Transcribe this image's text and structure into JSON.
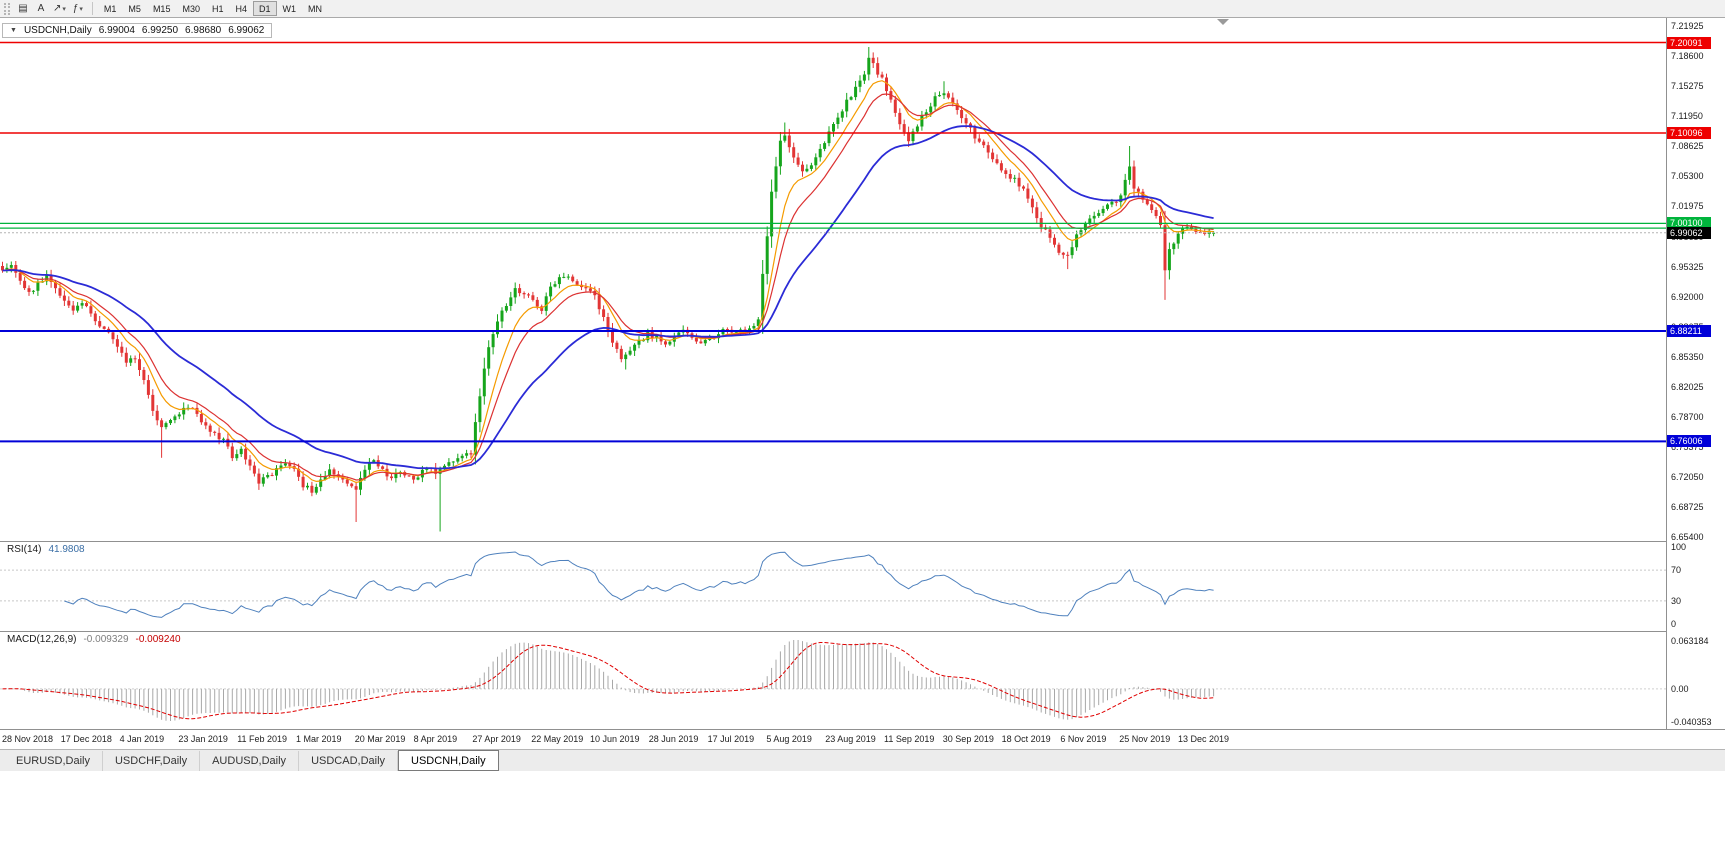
{
  "toolbar": {
    "tools": [
      {
        "name": "charts-button",
        "icon": "chart-window-icon",
        "glyph": "▤",
        "dropdown": false
      },
      {
        "name": "text-tool-button",
        "icon": "text-tool-icon",
        "glyph": "A",
        "dropdown": false
      },
      {
        "name": "draw-tool-button",
        "icon": "trendline-icon",
        "glyph": "↗",
        "dropdown": true
      },
      {
        "name": "indicator-tool-button",
        "icon": "indicator-icon",
        "glyph": "ƒ",
        "dropdown": true
      }
    ],
    "timeframes": [
      {
        "label": "M1",
        "active": false
      },
      {
        "label": "M5",
        "active": false
      },
      {
        "label": "M15",
        "active": false
      },
      {
        "label": "M30",
        "active": false
      },
      {
        "label": "H1",
        "active": false
      },
      {
        "label": "H4",
        "active": false
      },
      {
        "label": "D1",
        "active": true
      },
      {
        "label": "W1",
        "active": false
      },
      {
        "label": "MN",
        "active": false
      }
    ]
  },
  "chart": {
    "legend": {
      "symbol": "USDCNH,Daily",
      "open": "6.99004",
      "high": "6.99250",
      "low": "6.98680",
      "close": "6.99062"
    },
    "y_axis_labels": [
      "7.21925",
      "7.18600",
      "7.15275",
      "7.11950",
      "7.08625",
      "7.05300",
      "7.01975",
      "6.98650",
      "6.95325",
      "6.92000",
      "6.88675",
      "6.85350",
      "6.82025",
      "6.78700",
      "6.75375",
      "6.72050",
      "6.68725",
      "6.65400"
    ],
    "hlines": [
      {
        "value": 7.20091,
        "label": "7.20091",
        "color": "#EE0000",
        "width": 1.5,
        "badge": true
      },
      {
        "value": 7.10096,
        "label": "7.10096",
        "color": "#EE0000",
        "width": 1.5,
        "badge": true
      },
      {
        "value": 7.001,
        "label": "7.00100",
        "color": "#00B43C",
        "width": 1.2,
        "badge": true
      },
      {
        "value": 6.9958,
        "label": "",
        "color": "#00B43C",
        "width": 1.2,
        "badge": false
      },
      {
        "value": 6.88211,
        "label": "6.88211",
        "color": "#0000D8",
        "width": 2,
        "badge": true
      },
      {
        "value": 6.76006,
        "label": "6.76006",
        "color": "#0000D8",
        "width": 2,
        "badge": true
      }
    ],
    "current_price": {
      "value": 6.99062,
      "label": "6.99062",
      "badge_color": "#000000"
    },
    "candle_colors": {
      "up": "#16A51C",
      "down": "#E23535"
    },
    "x_axis_dates": [
      "28 Nov 2018",
      "17 Dec 2018",
      "4 Jan 2019",
      "23 Jan 2019",
      "11 Feb 2019",
      "1 Mar 2019",
      "20 Mar 2019",
      "8 Apr 2019",
      "27 Apr 2019",
      "22 May 2019",
      "10 Jun 2019",
      "28 Jun 2019",
      "17 Jul 2019",
      "5 Aug 2019",
      "23 Aug 2019",
      "11 Sep 2019",
      "30 Sep 2019",
      "18 Oct 2019",
      "6 Nov 2019",
      "25 Nov 2019",
      "13 Dec 2019"
    ]
  },
  "rsi_panel": {
    "label": "RSI(14)",
    "value": "41.9808",
    "axis_labels": [
      "100",
      "70",
      "30",
      "0"
    ],
    "levels": [
      70,
      30
    ],
    "line_color": "#4F81BD"
  },
  "macd_panel": {
    "label": "MACD(12,26,9)",
    "value_main": "-0.009329",
    "value_signal": "-0.009240",
    "axis_top": "0.063184",
    "axis_zero": "0.00",
    "axis_bottom": "-0.040353",
    "histogram_color": "#A8A8A8",
    "signal_color": "#E00000"
  },
  "tabs": [
    {
      "label": "EURUSD,Daily",
      "active": false
    },
    {
      "label": "USDCHF,Daily",
      "active": false
    },
    {
      "label": "AUDUSD,Daily",
      "active": false
    },
    {
      "label": "USDCAD,Daily",
      "active": false
    },
    {
      "label": "USDCNH,Daily",
      "active": true
    }
  ],
  "chart_data": [
    {
      "type": "candlestick",
      "symbol": "USDCNH",
      "timeframe": "Daily",
      "bars_total": 275,
      "y_range": {
        "min": 6.65,
        "max": 7.228
      },
      "y_tick_labels": [
        "7.21925",
        "7.18600",
        "7.15275",
        "7.11950",
        "7.08625",
        "7.05300",
        "7.01975",
        "6.98650",
        "6.95325",
        "6.92000",
        "6.88675",
        "6.85350",
        "6.82025",
        "6.78700",
        "6.75375",
        "6.72050",
        "6.68725",
        "6.65400"
      ],
      "x_labels": [
        "28 Nov 2018",
        "17 Dec 2018",
        "4 Jan 2019",
        "23 Jan 2019",
        "11 Feb 2019",
        "1 Mar 2019",
        "20 Mar 2019",
        "8 Apr 2019",
        "27 Apr 2019",
        "22 May 2019",
        "10 Jun 2019",
        "28 Jun 2019",
        "17 Jul 2019",
        "5 Aug 2019",
        "23 Aug 2019",
        "11 Sep 2019",
        "30 Sep 2019",
        "18 Oct 2019",
        "6 Nov 2019",
        "25 Nov 2019",
        "13 Dec 2019"
      ],
      "last_bar_ohlc": {
        "open": 6.99004,
        "high": 6.9925,
        "low": 6.9868,
        "close": 6.99062
      },
      "close_path_anchors": [
        [
          0,
          6.951
        ],
        [
          2,
          6.958
        ],
        [
          4,
          6.94
        ],
        [
          6,
          6.924
        ],
        [
          8,
          6.934
        ],
        [
          10,
          6.942
        ],
        [
          12,
          6.928
        ],
        [
          14,
          6.916
        ],
        [
          16,
          6.906
        ],
        [
          18,
          6.914
        ],
        [
          20,
          6.9
        ],
        [
          22,
          6.89
        ],
        [
          24,
          6.882
        ],
        [
          26,
          6.862
        ],
        [
          28,
          6.848
        ],
        [
          30,
          6.853
        ],
        [
          32,
          6.826
        ],
        [
          34,
          6.796
        ],
        [
          36,
          6.776
        ],
        [
          38,
          6.782
        ],
        [
          40,
          6.792
        ],
        [
          42,
          6.8
        ],
        [
          44,
          6.79
        ],
        [
          46,
          6.778
        ],
        [
          48,
          6.769
        ],
        [
          50,
          6.76
        ],
        [
          52,
          6.744
        ],
        [
          54,
          6.749
        ],
        [
          56,
          6.732
        ],
        [
          58,
          6.714
        ],
        [
          60,
          6.722
        ],
        [
          62,
          6.728
        ],
        [
          64,
          6.734
        ],
        [
          66,
          6.728
        ],
        [
          68,
          6.712
        ],
        [
          70,
          6.706
        ],
        [
          72,
          6.719
        ],
        [
          74,
          6.727
        ],
        [
          76,
          6.721
        ],
        [
          78,
          6.713
        ],
        [
          80,
          6.706
        ],
        [
          82,
          6.73
        ],
        [
          84,
          6.739
        ],
        [
          86,
          6.729
        ],
        [
          88,
          6.719
        ],
        [
          90,
          6.726
        ],
        [
          92,
          6.722
        ],
        [
          94,
          6.719
        ],
        [
          96,
          6.733
        ],
        [
          98,
          6.724
        ],
        [
          100,
          6.734
        ],
        [
          102,
          6.739
        ],
        [
          104,
          6.742
        ],
        [
          106,
          6.748
        ],
        [
          108,
          6.812
        ],
        [
          110,
          6.864
        ],
        [
          112,
          6.894
        ],
        [
          114,
          6.912
        ],
        [
          116,
          6.928
        ],
        [
          118,
          6.924
        ],
        [
          120,
          6.917
        ],
        [
          122,
          6.905
        ],
        [
          124,
          6.93
        ],
        [
          126,
          6.94
        ],
        [
          128,
          6.945
        ],
        [
          130,
          6.934
        ],
        [
          132,
          6.93
        ],
        [
          134,
          6.922
        ],
        [
          136,
          6.896
        ],
        [
          138,
          6.872
        ],
        [
          140,
          6.854
        ],
        [
          142,
          6.858
        ],
        [
          144,
          6.87
        ],
        [
          146,
          6.879
        ],
        [
          148,
          6.874
        ],
        [
          150,
          6.869
        ],
        [
          152,
          6.877
        ],
        [
          154,
          6.881
        ],
        [
          156,
          6.874
        ],
        [
          158,
          6.869
        ],
        [
          160,
          6.875
        ],
        [
          162,
          6.879
        ],
        [
          164,
          6.884
        ],
        [
          166,
          6.881
        ],
        [
          168,
          6.883
        ],
        [
          170,
          6.89
        ],
        [
          171,
          6.896
        ],
        [
          172,
          6.944
        ],
        [
          173,
          6.984
        ],
        [
          174,
          7.034
        ],
        [
          175,
          7.066
        ],
        [
          176,
          7.09
        ],
        [
          177,
          7.096
        ],
        [
          179,
          7.074
        ],
        [
          181,
          7.057
        ],
        [
          183,
          7.063
        ],
        [
          185,
          7.081
        ],
        [
          187,
          7.1
        ],
        [
          189,
          7.118
        ],
        [
          191,
          7.136
        ],
        [
          193,
          7.15
        ],
        [
          195,
          7.168
        ],
        [
          196,
          7.183
        ],
        [
          197,
          7.176
        ],
        [
          199,
          7.16
        ],
        [
          201,
          7.14
        ],
        [
          203,
          7.11
        ],
        [
          205,
          7.094
        ],
        [
          207,
          7.11
        ],
        [
          209,
          7.126
        ],
        [
          211,
          7.14
        ],
        [
          213,
          7.145
        ],
        [
          215,
          7.131
        ],
        [
          217,
          7.117
        ],
        [
          219,
          7.104
        ],
        [
          221,
          7.091
        ],
        [
          223,
          7.079
        ],
        [
          225,
          7.065
        ],
        [
          227,
          7.057
        ],
        [
          229,
          7.049
        ],
        [
          231,
          7.037
        ],
        [
          233,
          7.016
        ],
        [
          235,
          6.999
        ],
        [
          237,
          6.984
        ],
        [
          239,
          6.971
        ],
        [
          241,
          6.964
        ],
        [
          243,
          6.987
        ],
        [
          245,
          7.002
        ],
        [
          247,
          7.011
        ],
        [
          249,
          7.017
        ],
        [
          251,
          7.023
        ],
        [
          253,
          7.031
        ],
        [
          255,
          7.066
        ],
        [
          256,
          7.04
        ],
        [
          258,
          7.028
        ],
        [
          260,
          7.013
        ],
        [
          262,
          7.001
        ],
        [
          263,
          6.947
        ],
        [
          264,
          6.973
        ],
        [
          266,
          6.989
        ],
        [
          268,
          6.999
        ],
        [
          270,
          6.994
        ],
        [
          272,
          6.991
        ],
        [
          274,
          6.99062
        ]
      ],
      "wick_spikes": [
        [
          36,
          "low",
          6.742
        ],
        [
          80,
          "low",
          6.671
        ],
        [
          99,
          "low",
          6.6605
        ],
        [
          141,
          "low",
          6.8395
        ],
        [
          177,
          "high",
          7.1125
        ],
        [
          196,
          "high",
          7.196
        ],
        [
          213,
          "high",
          7.158
        ],
        [
          241,
          "low",
          6.9505
        ],
        [
          255,
          "high",
          7.0865
        ],
        [
          263,
          "low",
          6.9165
        ]
      ],
      "moving_averages": [
        {
          "period": 8,
          "color": "#F59B00"
        },
        {
          "period": 13,
          "color": "#DC3232"
        },
        {
          "period": 34,
          "color": "#2B2BD6"
        }
      ],
      "horizontal_lines": [
        {
          "value": 7.20091,
          "color": "red"
        },
        {
          "value": 7.10096,
          "color": "red"
        },
        {
          "value": 7.001,
          "color": "green"
        },
        {
          "value": 6.9958,
          "color": "green"
        },
        {
          "value": 6.88211,
          "color": "blue"
        },
        {
          "value": 6.76006,
          "color": "blue"
        }
      ],
      "current_price": 6.99062,
      "candle_up_color": "#16A51C",
      "candle_down_color": "#E23535"
    },
    {
      "type": "line",
      "panel": "RSI",
      "label": "RSI(14)",
      "period": 14,
      "current_value": 41.9808,
      "y_ticks": [
        100,
        70,
        30,
        0
      ],
      "level_lines": [
        70,
        30
      ],
      "line_color": "#4F81BD",
      "computed_from": "main panel closes"
    },
    {
      "type": "histogram_line",
      "panel": "MACD",
      "label": "MACD(12,26,9)",
      "fast_period": 12,
      "slow_period": 26,
      "signal_period": 9,
      "current_main": -0.009329,
      "current_signal": -0.00924,
      "y_ticks": [
        "0.063184",
        "0.00",
        "-0.040353"
      ],
      "histogram_color": "#A8A8A8",
      "signal_color": "#E00000",
      "computed_from": "main panel closes"
    }
  ]
}
